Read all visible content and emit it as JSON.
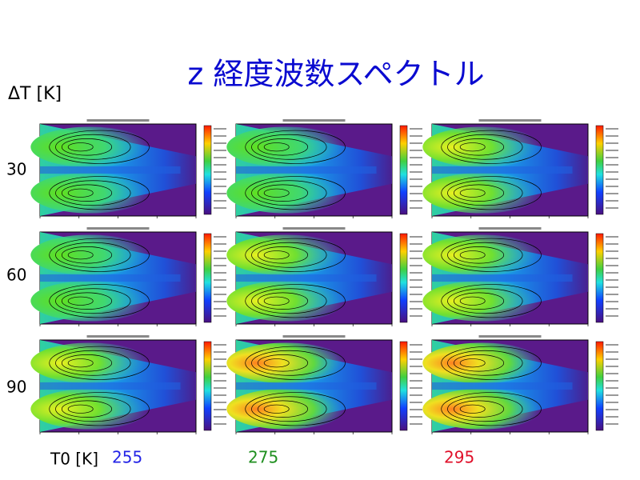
{
  "title": "z 経度波数スペクトル",
  "row_axis": {
    "label": "ΔT [K]",
    "values": [
      "30",
      "60",
      "90"
    ]
  },
  "column_axis": {
    "label": "T0 [K]",
    "values": [
      {
        "text": "255",
        "color": "#2323e6"
      },
      {
        "text": "275",
        "color": "#1f8f1f"
      },
      {
        "text": "295",
        "color": "#e0102a"
      }
    ]
  }
}
